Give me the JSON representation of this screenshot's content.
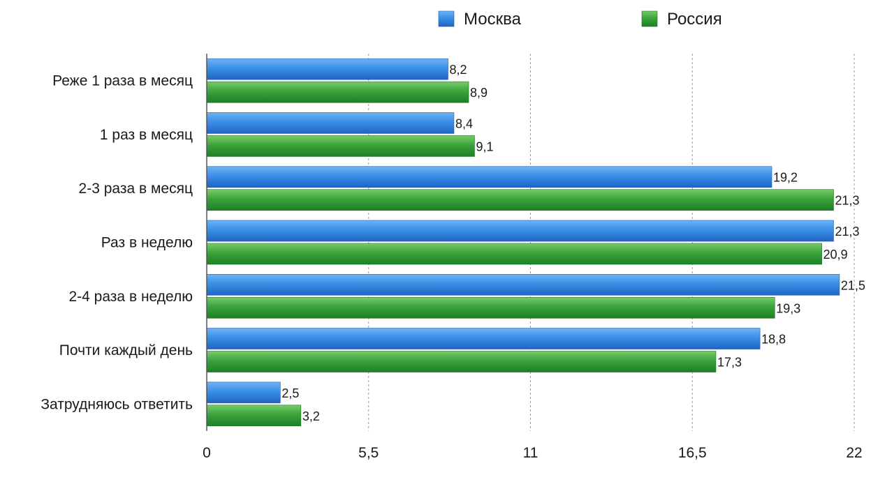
{
  "chart_data": {
    "type": "bar",
    "orientation": "horizontal",
    "categories": [
      "Реже 1 раза в месяц",
      "1 раз в месяц",
      "2-3 раза в месяц",
      "Раз в неделю",
      "2-4 раза в неделю",
      "Почти каждый день",
      "Затрудняюсь ответить"
    ],
    "series": [
      {
        "name": "Москва",
        "color": "#2f7fd9",
        "values": [
          8.2,
          8.4,
          19.2,
          21.3,
          21.5,
          18.8,
          2.5
        ],
        "labels": [
          "8,2",
          "8,4",
          "19,2",
          "21,3",
          "21,5",
          "18,8",
          "2,5"
        ]
      },
      {
        "name": "Россия",
        "color": "#2f9a3a",
        "values": [
          8.9,
          9.1,
          21.3,
          20.9,
          19.3,
          17.3,
          3.2
        ],
        "labels": [
          "8,9",
          "9,1",
          "21,3",
          "20,9",
          "19,3",
          "17,3",
          "3,2"
        ]
      }
    ],
    "xlim": [
      0,
      22
    ],
    "xticks": [
      0,
      5.5,
      11,
      16.5,
      22
    ],
    "xtick_labels": [
      "0",
      "5,5",
      "11",
      "16,5",
      "22"
    ],
    "grid": "vertical dashed",
    "legend": "top-center"
  }
}
